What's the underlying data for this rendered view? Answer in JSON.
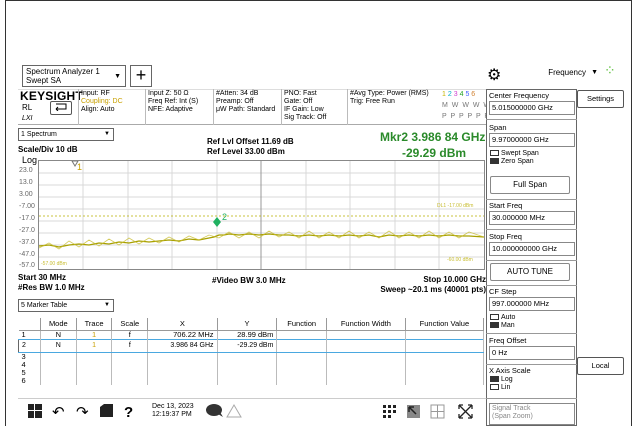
{
  "window": {
    "title_line1": "Spectrum Analyzer 1",
    "title_line2": "Swept SA",
    "add_label": "+"
  },
  "header": {
    "logo": "KEYSIGHT",
    "rl": "RL",
    "lxi": "LXI",
    "col1": [
      "Input: RF",
      "Coupling: DC",
      "Align: Auto"
    ],
    "col2": [
      "Input Z: 50 Ω",
      "",
      "Freq Ref: Int (S)",
      "NFE: Adaptive"
    ],
    "col3": [
      "#Atten: 34 dB",
      "Preamp: Off",
      "μW Path: Standard"
    ],
    "col4": [
      "PNO: Fast",
      "Gate: Off",
      "IF Gain: Low",
      "Sig Track: Off"
    ],
    "col5": [
      "#Avg Type: Power (RMS)",
      "Trig: Free Run"
    ],
    "trace_numbers": [
      "1",
      "2",
      "3",
      "4",
      "5",
      "6"
    ],
    "trace_modes": "M W W W W W",
    "trace_dets": "P P P P P P"
  },
  "spectrum": {
    "view_select": "1 Spectrum",
    "scale": "Scale/Div 10 dB",
    "log": "Log",
    "ref_offset": "Ref Lvl Offset 11.69 dB",
    "ref_level": "Ref Level 33.00 dBm",
    "marker_name": "Mkr2  3.986 84 GHz",
    "marker_value": "-29.29 dBm",
    "y_ticks": [
      "23.0",
      "13.0",
      "3.00",
      "-7.00",
      "-17.0",
      "-27.0",
      "-37.0",
      "-47.0",
      "-57.0"
    ],
    "start": "Start 30 MHz",
    "res_bw": "#Res BW 1.0 MHz",
    "video_bw": "#Video BW 3.0 MHz",
    "stop": "Stop 10.000 GHz",
    "sweep": "Sweep ~20.1 ms (40001 pts)",
    "line_label_right": "DL1 -17.00 dBm",
    "line_label_left": "-57.00 dBm",
    "line_label_bottom_right": "-60.00 dBm",
    "marker1_label": "1",
    "marker2_label": "2"
  },
  "marker_table": {
    "select": "5 Marker Table",
    "headers": [
      "",
      "Mode",
      "Trace",
      "Scale",
      "X",
      "Y",
      "Function",
      "Function Width",
      "Function Value"
    ],
    "rows": [
      [
        "1",
        "N",
        "1",
        "f",
        "706.22 MHz",
        "28.99 dBm",
        "",
        "",
        ""
      ],
      [
        "2",
        "N",
        "1",
        "f",
        "3.986 84 GHz",
        "-29.29 dBm",
        "",
        "",
        ""
      ],
      [
        "3",
        "",
        "",
        "",
        "",
        "",
        "",
        "",
        ""
      ],
      [
        "4",
        "",
        "",
        "",
        "",
        "",
        "",
        "",
        ""
      ],
      [
        "5",
        "",
        "",
        "",
        "",
        "",
        "",
        "",
        ""
      ],
      [
        "6",
        "",
        "",
        "",
        "",
        "",
        "",
        "",
        ""
      ]
    ]
  },
  "taskbar": {
    "date": "Dec 13, 2023",
    "time": "12:19:37 PM"
  },
  "right_panel": {
    "menu": "Frequency",
    "center_freq_label": "Center Frequency",
    "center_freq_value": "5.015000000 GHz",
    "span_label": "Span",
    "span_value": "9.97000000 GHz",
    "swept_span": "Swept Span",
    "zero_span": "Zero Span",
    "full_span": "Full Span",
    "start_label": "Start Freq",
    "start_value": "30.000000 MHz",
    "stop_label": "Stop Freq",
    "stop_value": "10.000000000 GHz",
    "auto_tune": "AUTO TUNE",
    "cf_step_label": "CF Step",
    "cf_step_value": "997.000000 MHz",
    "auto": "Auto",
    "man": "Man",
    "freq_offset_label": "Freq Offset",
    "freq_offset_value": "0 Hz",
    "x_axis_label": "X Axis Scale",
    "x_log": "Log",
    "x_lin": "Lin",
    "signal_track": "Signal Track",
    "span_zoom": "(Span Zoom)",
    "settings": "Settings",
    "local": "Local"
  },
  "colors": {
    "trace": "#a8a000",
    "marker": "#20b060",
    "accent": "#2a8a2a"
  }
}
